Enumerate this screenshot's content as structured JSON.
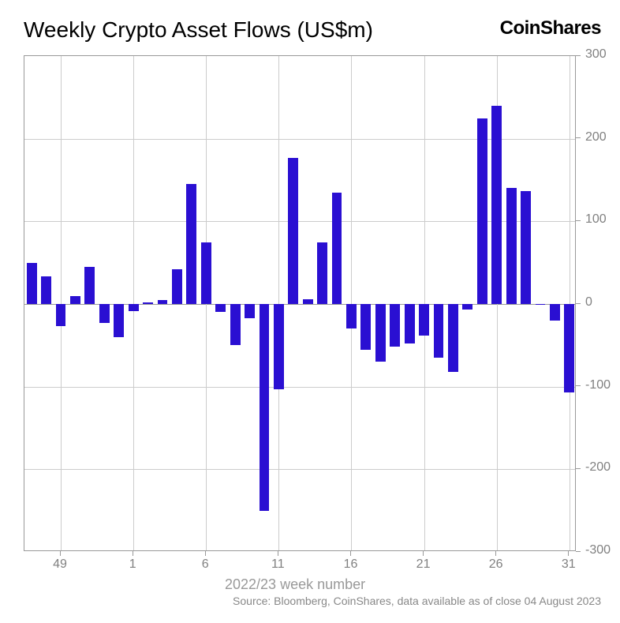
{
  "header": {
    "title": "Weekly Crypto Asset Flows (US$m)",
    "brand": "CoinShares"
  },
  "chart": {
    "type": "bar",
    "bar_color": "#2a0fd2",
    "background_color": "#ffffff",
    "grid_color": "#cccccc",
    "border_color": "#999999",
    "axis_text_color": "#808080",
    "title_fontsize": 28,
    "label_fontsize": 16,
    "xlabel_fontsize": 18,
    "ylim": [
      -300,
      300
    ],
    "ytick_step": 100,
    "yticks": [
      -300,
      -200,
      -100,
      0,
      100,
      200,
      300
    ],
    "xticks": [
      {
        "pos": 2,
        "label": "49"
      },
      {
        "pos": 7,
        "label": "1"
      },
      {
        "pos": 12,
        "label": "6"
      },
      {
        "pos": 17,
        "label": "11"
      },
      {
        "pos": 22,
        "label": "16"
      },
      {
        "pos": 27,
        "label": "21"
      },
      {
        "pos": 32,
        "label": "26"
      },
      {
        "pos": 37,
        "label": "31"
      }
    ],
    "xlabel": "2022/23 week number",
    "bar_width": 0.7,
    "values": [
      50,
      33,
      -27,
      10,
      45,
      -23,
      -40,
      -9,
      2,
      5,
      42,
      145,
      75,
      -10,
      -50,
      -17,
      -250,
      -103,
      177,
      6,
      75,
      135,
      -30,
      -55,
      -70,
      -52,
      -48,
      -38,
      -65,
      -82,
      -7,
      225,
      240,
      140,
      137,
      -1,
      -20,
      -107
    ],
    "num_bars": 38
  },
  "footer": {
    "source": "Source: Bloomberg, CoinShares, data available as of close 04 August 2023"
  }
}
